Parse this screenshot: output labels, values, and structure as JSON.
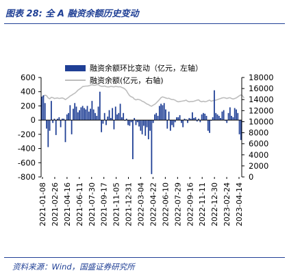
{
  "figure": {
    "title": "图表 28:  全 A 融资余额历史变动",
    "source": "资料来源：Wind，国盛证券研究所"
  },
  "colors": {
    "bars": "#1f3f95",
    "line": "#bdbdbd",
    "accent": "#1f3f95"
  },
  "chart_data": {
    "type": "bar",
    "legend_position": "top",
    "grid": false,
    "x_tick_labels": [
      "2021-01-08",
      "2021-02-26",
      "2021-04-16",
      "2021-06-11",
      "2021-07-30",
      "2021-09-17",
      "2021-11-05",
      "2021-12-31",
      "2022-03-04",
      "2022-04-22",
      "2022-06-10",
      "2022-07-29",
      "2022-09-16",
      "2022-11-11",
      "2022-12-30",
      "2023-02-24",
      "2023-04-14"
    ],
    "y_left": {
      "ylim": [
        -800,
        600
      ],
      "ticks": [
        -800,
        -600,
        -400,
        -200,
        0,
        200,
        400,
        600
      ]
    },
    "y_right": {
      "ylim": [
        0,
        18000
      ],
      "ticks": [
        0,
        2000,
        4000,
        6000,
        8000,
        10000,
        12000,
        14000,
        16000,
        18000
      ]
    },
    "series": [
      {
        "name": "融资余额环比变动（亿元，左轴）",
        "kind": "bar",
        "axis": "left",
        "values": [
          330,
          350,
          240,
          -120,
          -380,
          -150,
          270,
          -40,
          20,
          -210,
          20,
          40,
          -100,
          20,
          20,
          -310,
          80,
          100,
          210,
          -200,
          160,
          240,
          190,
          110,
          140,
          180,
          200,
          170,
          150,
          200,
          120,
          160,
          270,
          150,
          100,
          60,
          190,
          400,
          -170,
          -50,
          100,
          -70,
          50,
          140,
          30,
          170,
          -130,
          190,
          80,
          100,
          230,
          40,
          100,
          -10,
          20,
          -70,
          -80,
          -30,
          -550,
          30,
          -70,
          -30,
          -90,
          -150,
          -200,
          -80,
          -220,
          -100,
          -270,
          -150,
          -760,
          -40,
          80,
          100,
          60,
          200,
          230,
          210,
          240,
          150,
          -120,
          120,
          -150,
          -70,
          -100,
          -30,
          40,
          40,
          70,
          -40,
          -100,
          20,
          10,
          -40,
          30,
          20,
          110,
          30,
          40,
          -20,
          20,
          -30,
          80,
          100,
          90,
          60,
          -150,
          -180,
          -10,
          40,
          420,
          100,
          80,
          60,
          30,
          120,
          140,
          -10,
          -40,
          100,
          180,
          60,
          40,
          170,
          150,
          100,
          -200,
          -280
        ]
      },
      {
        "name": "融资余额(亿元，右轴)",
        "kind": "line",
        "axis": "right",
        "values": [
          14450,
          14600,
          14800,
          14700,
          14300,
          14150,
          14400,
          14350,
          14200,
          14250,
          14300,
          14200,
          14250,
          14300,
          14200,
          14000,
          14200,
          14400,
          14650,
          14800,
          15000,
          15150,
          15400,
          15700,
          15900,
          16100,
          16350,
          16400,
          16450,
          16450,
          16500,
          16600,
          16700,
          16600,
          16600,
          16700,
          16700,
          16500,
          16400,
          16400,
          16450,
          16350,
          16300,
          16300,
          16400,
          16350,
          16300,
          16400,
          16350,
          16300,
          16350,
          16200,
          16100,
          15900,
          15600,
          15100,
          14700,
          14500,
          14400,
          14100,
          13950,
          14050,
          14000,
          13900,
          13700,
          13600,
          13400,
          13200,
          13100,
          12900,
          12800,
          13000,
          13150,
          13400,
          13700,
          14000,
          14350,
          14500,
          14400,
          14300,
          14200,
          14250,
          14100,
          14000,
          14000,
          13900,
          13700,
          13600,
          13650,
          13700,
          13750,
          13800,
          13900,
          13700,
          13600,
          13650,
          13650,
          13700,
          13800,
          13900,
          13950,
          13700,
          13600,
          13700,
          13600,
          13650,
          13800,
          13900,
          13700,
          13800,
          13850,
          13900,
          14000,
          14100,
          14200,
          14300,
          14350,
          14300,
          14200,
          14300,
          14350,
          14200,
          14100,
          14200,
          14300,
          14500,
          14700,
          14850,
          14700,
          14300
        ]
      }
    ]
  }
}
